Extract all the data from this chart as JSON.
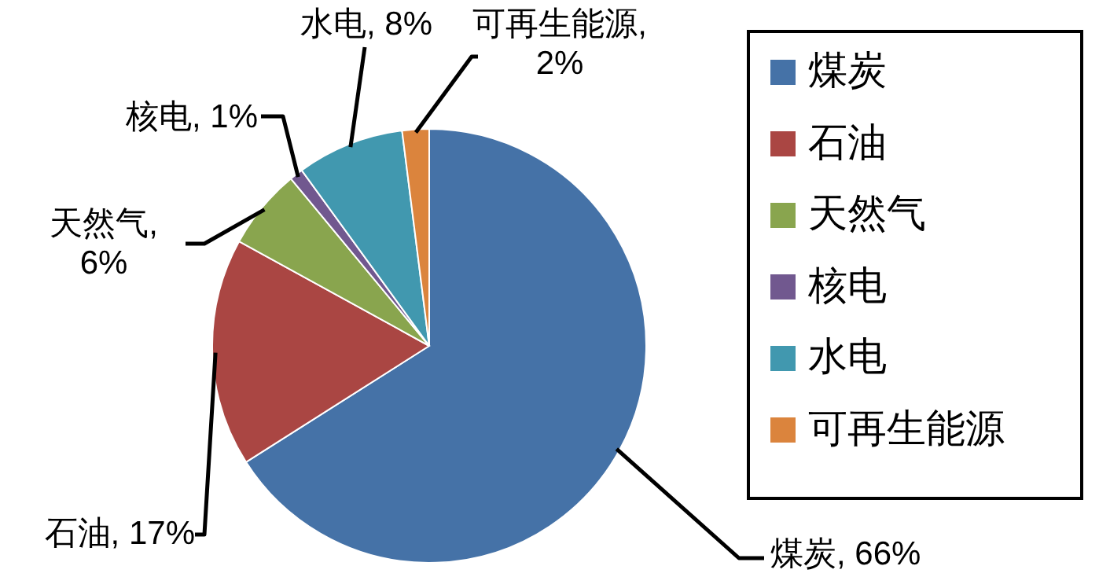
{
  "chart_data": {
    "type": "pie",
    "categories": [
      "煤炭",
      "石油",
      "天然气",
      "核电",
      "水电",
      "可再生能源"
    ],
    "values": [
      66,
      17,
      6,
      1,
      8,
      2
    ],
    "colors": [
      "#4572a7",
      "#aa4643",
      "#89a54e",
      "#71588f",
      "#4198af",
      "#db843d"
    ],
    "value_labels": [
      "煤炭, 66%",
      "石油, 17%",
      "天然气, 6%",
      "核电, 1%",
      "水电, 8%",
      "可再生能源, 2%"
    ],
    "legend": "right"
  }
}
